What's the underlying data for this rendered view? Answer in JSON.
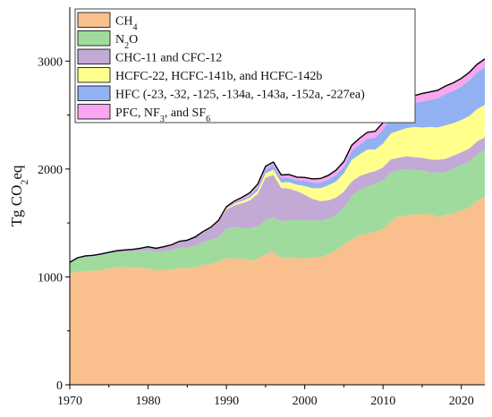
{
  "chart_data": {
    "type": "area",
    "stacked": true,
    "title": "",
    "xlabel": "",
    "ylabel": "Tg CO2eq",
    "ylabel_parts": {
      "main": "Tg CO",
      "sub": "2",
      "tail": "eq"
    },
    "xlim": [
      1970,
      2023
    ],
    "ylim": [
      0,
      3500
    ],
    "xticks": [
      1970,
      1980,
      1990,
      2000,
      2010,
      2020
    ],
    "yticks": [
      0,
      1000,
      2000,
      3000
    ],
    "grid": false,
    "legend_position": "top-left",
    "x": [
      1970,
      1971,
      1972,
      1973,
      1974,
      1975,
      1976,
      1977,
      1978,
      1979,
      1980,
      1981,
      1982,
      1983,
      1984,
      1985,
      1986,
      1987,
      1988,
      1989,
      1990,
      1991,
      1992,
      1993,
      1994,
      1995,
      1996,
      1997,
      1998,
      1999,
      2000,
      2001,
      2002,
      2003,
      2004,
      2005,
      2006,
      2007,
      2008,
      2009,
      2010,
      2011,
      2012,
      2013,
      2014,
      2015,
      2016,
      2017,
      2018,
      2019,
      2020,
      2021,
      2022,
      2023
    ],
    "series": [
      {
        "name": "CH4",
        "label_main": "CH",
        "label_sub": "4",
        "label_tail": "",
        "color": "#f9c08e",
        "values": [
          1030,
          1050,
          1055,
          1055,
          1062,
          1078,
          1088,
          1090,
          1085,
          1085,
          1075,
          1060,
          1065,
          1068,
          1085,
          1080,
          1090,
          1110,
          1120,
          1140,
          1175,
          1172,
          1168,
          1150,
          1170,
          1210,
          1235,
          1175,
          1178,
          1175,
          1172,
          1178,
          1182,
          1210,
          1245,
          1300,
          1345,
          1385,
          1400,
          1420,
          1445,
          1510,
          1565,
          1568,
          1580,
          1580,
          1585,
          1555,
          1575,
          1590,
          1615,
          1640,
          1705,
          1745
        ]
      },
      {
        "name": "N2O",
        "label_main": "N",
        "label_sub": "2",
        "label_tail": "O",
        "color": "#9fdb9d",
        "values": [
          100,
          120,
          130,
          135,
          140,
          140,
          142,
          145,
          150,
          155,
          175,
          170,
          175,
          180,
          185,
          190,
          200,
          210,
          220,
          230,
          270,
          290,
          285,
          300,
          300,
          310,
          320,
          340,
          350,
          350,
          355,
          345,
          340,
          330,
          330,
          340,
          400,
          420,
          440,
          440,
          450,
          460,
          420,
          430,
          410,
          405,
          385,
          410,
          400,
          415,
          420,
          430,
          430,
          430
        ]
      },
      {
        "name": "CHC-11 and CFC-12",
        "label_main": "CHC-11 and CFC-12",
        "label_sub": "",
        "label_tail": "",
        "color": "#c3a9d6",
        "values": [
          5,
          8,
          10,
          10,
          10,
          10,
          12,
          15,
          20,
          25,
          30,
          35,
          40,
          50,
          60,
          70,
          80,
          100,
          120,
          150,
          180,
          200,
          230,
          260,
          300,
          400,
          390,
          310,
          290,
          270,
          235,
          200,
          180,
          170,
          160,
          150,
          140,
          130,
          120,
          120,
          120,
          120,
          120,
          120,
          120,
          120,
          120,
          120,
          120,
          120,
          120,
          120,
          120,
          120
        ]
      },
      {
        "name": "HCFC-22, HCFC-141b, and HCFC-142b",
        "label_main": "HCFC-22, HCFC-141b, and HCFC-142b",
        "label_sub": "",
        "label_tail": "",
        "color": "#ffff8c",
        "values": [
          0,
          0,
          0,
          0,
          0,
          0,
          0,
          0,
          0,
          0,
          0,
          0,
          0,
          0,
          0,
          0,
          0,
          0,
          0,
          5,
          10,
          15,
          20,
          25,
          30,
          40,
          50,
          50,
          60,
          60,
          80,
          100,
          120,
          140,
          150,
          170,
          200,
          200,
          220,
          200,
          220,
          240,
          250,
          260,
          280,
          280,
          300,
          300,
          310,
          300,
          300,
          300,
          300,
          300
        ]
      },
      {
        "name": "HFC (-23, -32, -125, -134a, -143a, -152a, -227ea)",
        "label_main": "HFC (-23, -32, -125, -134a, -143a, -152a, -227ea)",
        "label_sub": "",
        "label_tail": "",
        "color": "#92b1f2",
        "values": [
          0,
          0,
          0,
          0,
          0,
          0,
          0,
          0,
          0,
          0,
          0,
          0,
          0,
          0,
          0,
          0,
          0,
          0,
          0,
          0,
          5,
          10,
          15,
          20,
          30,
          35,
          40,
          40,
          40,
          40,
          50,
          50,
          50,
          50,
          60,
          60,
          80,
          90,
          100,
          110,
          130,
          150,
          180,
          200,
          220,
          240,
          250,
          270,
          290,
          300,
          310,
          330,
          340,
          350
        ]
      },
      {
        "name": "PFC, NF3, and SF6",
        "label_main": "PFC, NF",
        "label_sub": "3",
        "label_tail": ", and SF",
        "label_sub2": "6",
        "color": "#f7a6ef",
        "values": [
          0,
          0,
          0,
          0,
          0,
          0,
          0,
          0,
          0,
          0,
          0,
          0,
          0,
          0,
          0,
          0,
          0,
          0,
          0,
          0,
          10,
          15,
          20,
          25,
          30,
          30,
          30,
          30,
          30,
          30,
          30,
          35,
          40,
          40,
          45,
          50,
          55,
          60,
          60,
          60,
          65,
          70,
          70,
          70,
          70,
          75,
          75,
          75,
          75,
          75,
          75,
          75,
          75,
          75
        ]
      }
    ]
  }
}
